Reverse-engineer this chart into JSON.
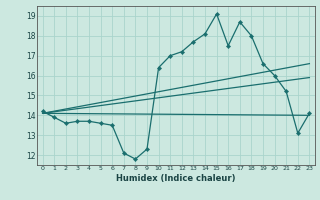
{
  "xlabel": "Humidex (Indice chaleur)",
  "bg_color": "#cce8e0",
  "grid_color": "#aad4cc",
  "line_color": "#1a6e6e",
  "x_data": [
    0,
    1,
    2,
    3,
    4,
    5,
    6,
    7,
    8,
    9,
    10,
    11,
    12,
    13,
    14,
    15,
    16,
    17,
    18,
    19,
    20,
    21,
    22,
    23
  ],
  "y_main": [
    14.2,
    13.9,
    13.6,
    13.7,
    13.7,
    13.6,
    13.5,
    12.1,
    11.8,
    12.3,
    16.4,
    17.0,
    17.2,
    17.7,
    18.1,
    19.1,
    17.5,
    18.7,
    18.0,
    16.6,
    16.0,
    15.2,
    13.1,
    14.1
  ],
  "reg_lines": [
    [
      0,
      14.1,
      23,
      16.6
    ],
    [
      0,
      14.1,
      23,
      15.9
    ],
    [
      0,
      14.1,
      23,
      14.0
    ]
  ],
  "ylim": [
    11.5,
    19.5
  ],
  "xlim": [
    -0.5,
    23.5
  ],
  "yticks": [
    12,
    13,
    14,
    15,
    16,
    17,
    18,
    19
  ],
  "xticks": [
    0,
    1,
    2,
    3,
    4,
    5,
    6,
    7,
    8,
    9,
    10,
    11,
    12,
    13,
    14,
    15,
    16,
    17,
    18,
    19,
    20,
    21,
    22,
    23
  ]
}
